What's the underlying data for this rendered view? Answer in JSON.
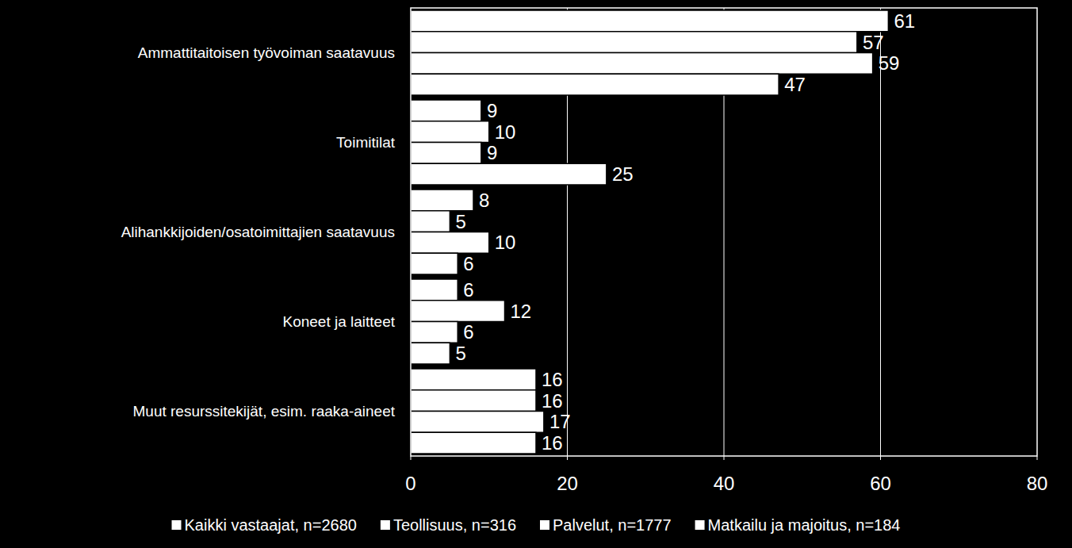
{
  "chart_data": {
    "type": "bar",
    "orientation": "horizontal",
    "categories": [
      "Ammattitaitoisen työvoiman saatavuus",
      "Toimitilat",
      "Alihankkijoiden/osatoimittajien saatavuus",
      "Koneet ja laitteet",
      "Muut resurssitekijät, esim. raaka-aineet"
    ],
    "series": [
      {
        "name": "Kaikki vastaajat, n=2680",
        "color": "#ffffff",
        "values": [
          61,
          9,
          8,
          6,
          16
        ]
      },
      {
        "name": "Teollisuus, n=316",
        "color": "#ffffff",
        "values": [
          57,
          10,
          5,
          12,
          16
        ]
      },
      {
        "name": "Palvelut, n=1777",
        "color": "#ffffff",
        "values": [
          59,
          9,
          10,
          6,
          17
        ]
      },
      {
        "name": "Matkailu ja majoitus, n=184",
        "color": "#ffffff",
        "values": [
          47,
          25,
          6,
          5,
          16
        ]
      }
    ],
    "xlim": [
      0,
      80
    ],
    "xticks": [
      0,
      20,
      40,
      60,
      80
    ],
    "grid": true,
    "data_labels": true,
    "legend": "bottom"
  }
}
